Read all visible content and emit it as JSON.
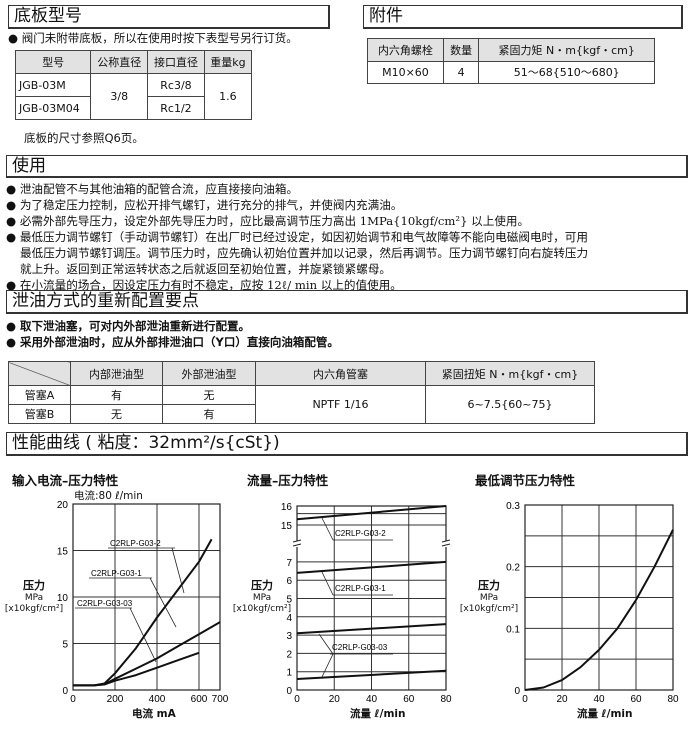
{
  "baseplate": {
    "title": "底板型号",
    "note": "阀门未附带底板，所以在使用时按下表型号另行订货。",
    "headers": [
      "型号",
      "公称直径",
      "接口直径",
      "重量kg"
    ],
    "rows": [
      {
        "model": "JGB-03M",
        "port": "Rc3/8"
      },
      {
        "model": "JGB-03M04",
        "port": "Rc1/2"
      }
    ],
    "nominal": "3/8",
    "weight": "1.6",
    "ref": "底板的尺寸参照Q6页。"
  },
  "accessory": {
    "title": "附件",
    "headers": [
      "内六角螺栓",
      "数量",
      "紧固力矩 N・m{kgf・cm}"
    ],
    "row": [
      "M10×60",
      "4",
      "51～68{510～680}"
    ]
  },
  "usage": {
    "title": "使用",
    "items": [
      "泄油配管不与其他油箱的配管合流，应直接接向油箱。",
      "为了稳定压力控制，应松开排气螺钉，进行充分的排气，并使阀内充满油。",
      "必需外部先导压力，设定外部先导压力时，应比最高调节压力高出 1MPa{10kgf/cm²} 以上使用。",
      "最低压力调节螺钉（手动调节螺钉）在出厂时已经过设定，如因初始调节和电气故障等不能向电磁阀电时，可用",
      "最低压力调节螺钉调压。调节压力时，应先确认初始位置并加以记录，然后再调节。压力调节螺钉向右旋转压力",
      "就上升。返回到正常运转状态之后就返回至初始位置，并旋紧锁紧螺母。",
      "在小流量的场合，因设定压力有时不稳定，应按 12ℓ/ min 以上的值使用。"
    ]
  },
  "drain": {
    "title": "泄油方式的重新配置要点",
    "items": [
      "取下泄油塞，可对内外部泄油重新进行配置。",
      "采用外部泄油时，应从外部排泄油口（Y口）直接向油箱配管。"
    ],
    "headers": [
      "内部泄油型",
      "外部泄油型",
      "内六角管塞",
      "紧固扭矩 N・m{kgf・cm}"
    ],
    "rows": [
      {
        "name": "管塞A",
        "internal": "有",
        "external": "无"
      },
      {
        "name": "管塞B",
        "internal": "无",
        "external": "有"
      }
    ],
    "plug": "NPTF 1/16",
    "torque": "6~7.5{60~75}"
  },
  "perf": {
    "title": "性能曲线 ( 粘度：32mm²/s{cSt})"
  },
  "chart_data": [
    {
      "type": "line",
      "title": "输入电流–压力特性",
      "subtitle": "电流:80 ℓ/min",
      "xlabel": "电流  mA",
      "ylabel": [
        "压力",
        "MPa",
        "[x10kgf/cm²]"
      ],
      "xlim": [
        0,
        700
      ],
      "ylim": [
        0,
        20
      ],
      "xticks": [
        0,
        200,
        400,
        600,
        700
      ],
      "yticks": [
        0,
        5,
        10,
        15,
        20
      ],
      "grid": true,
      "series": [
        {
          "name": "C2RLP-G03-2",
          "x": [
            0,
            100,
            150,
            200,
            300,
            400,
            500,
            600,
            660
          ],
          "y": [
            0.5,
            0.5,
            0.7,
            1.8,
            4.5,
            7.8,
            10.8,
            13.8,
            16.2
          ]
        },
        {
          "name": "C2RLP-G03-1",
          "x": [
            0,
            100,
            150,
            200,
            300,
            400,
            500,
            600,
            700
          ],
          "y": [
            0.5,
            0.5,
            0.6,
            1.2,
            2.3,
            3.4,
            4.7,
            6.0,
            7.3
          ]
        },
        {
          "name": "C2RLP-G03-03",
          "x": [
            0,
            100,
            150,
            200,
            300,
            400,
            500,
            600
          ],
          "y": [
            0.5,
            0.5,
            0.6,
            1.0,
            1.6,
            2.4,
            3.2,
            4.0
          ]
        }
      ]
    },
    {
      "type": "line",
      "title": "流量–压力特性",
      "xlabel": "流量  ℓ/min",
      "ylabel": [
        "压力",
        "MPa",
        "[x10kgf/cm²]"
      ],
      "xlim": [
        0,
        80
      ],
      "ylim": [
        0,
        16
      ],
      "axis_break": [
        7,
        15
      ],
      "xticks": [
        0,
        20,
        40,
        60,
        80
      ],
      "yticks": [
        0,
        1,
        2,
        3,
        4,
        5,
        6,
        7,
        15,
        16
      ],
      "grid": true,
      "series": [
        {
          "name": "C2RLP-G03-2",
          "x": [
            0,
            80
          ],
          "y": [
            15.3,
            16.0
          ]
        },
        {
          "name": "C2RLP-G03-1",
          "x": [
            0,
            80
          ],
          "y": [
            6.4,
            7.0
          ]
        },
        {
          "name": "C2RLP-G03-03",
          "x": [
            0,
            80
          ],
          "y": [
            3.1,
            3.6
          ]
        },
        {
          "name": "C2RLP-G03-03",
          "x": [
            0,
            80
          ],
          "y": [
            0.6,
            1.05
          ]
        }
      ]
    },
    {
      "type": "line",
      "title": "最低调节压力特性",
      "xlabel": "流量  ℓ/min",
      "ylabel": [
        "压力",
        "MPa",
        "[x10kgf/cm²]"
      ],
      "xlim": [
        0,
        80
      ],
      "ylim": [
        0,
        0.3
      ],
      "xticks": [
        0,
        20,
        40,
        60,
        80
      ],
      "yticks": [
        0,
        0.1,
        0.2,
        0.3
      ],
      "grid": true,
      "series": [
        {
          "x": [
            0,
            10,
            20,
            30,
            40,
            50,
            60,
            70,
            80
          ],
          "y": [
            0,
            0.004,
            0.016,
            0.037,
            0.065,
            0.1,
            0.146,
            0.2,
            0.26
          ]
        }
      ]
    }
  ]
}
